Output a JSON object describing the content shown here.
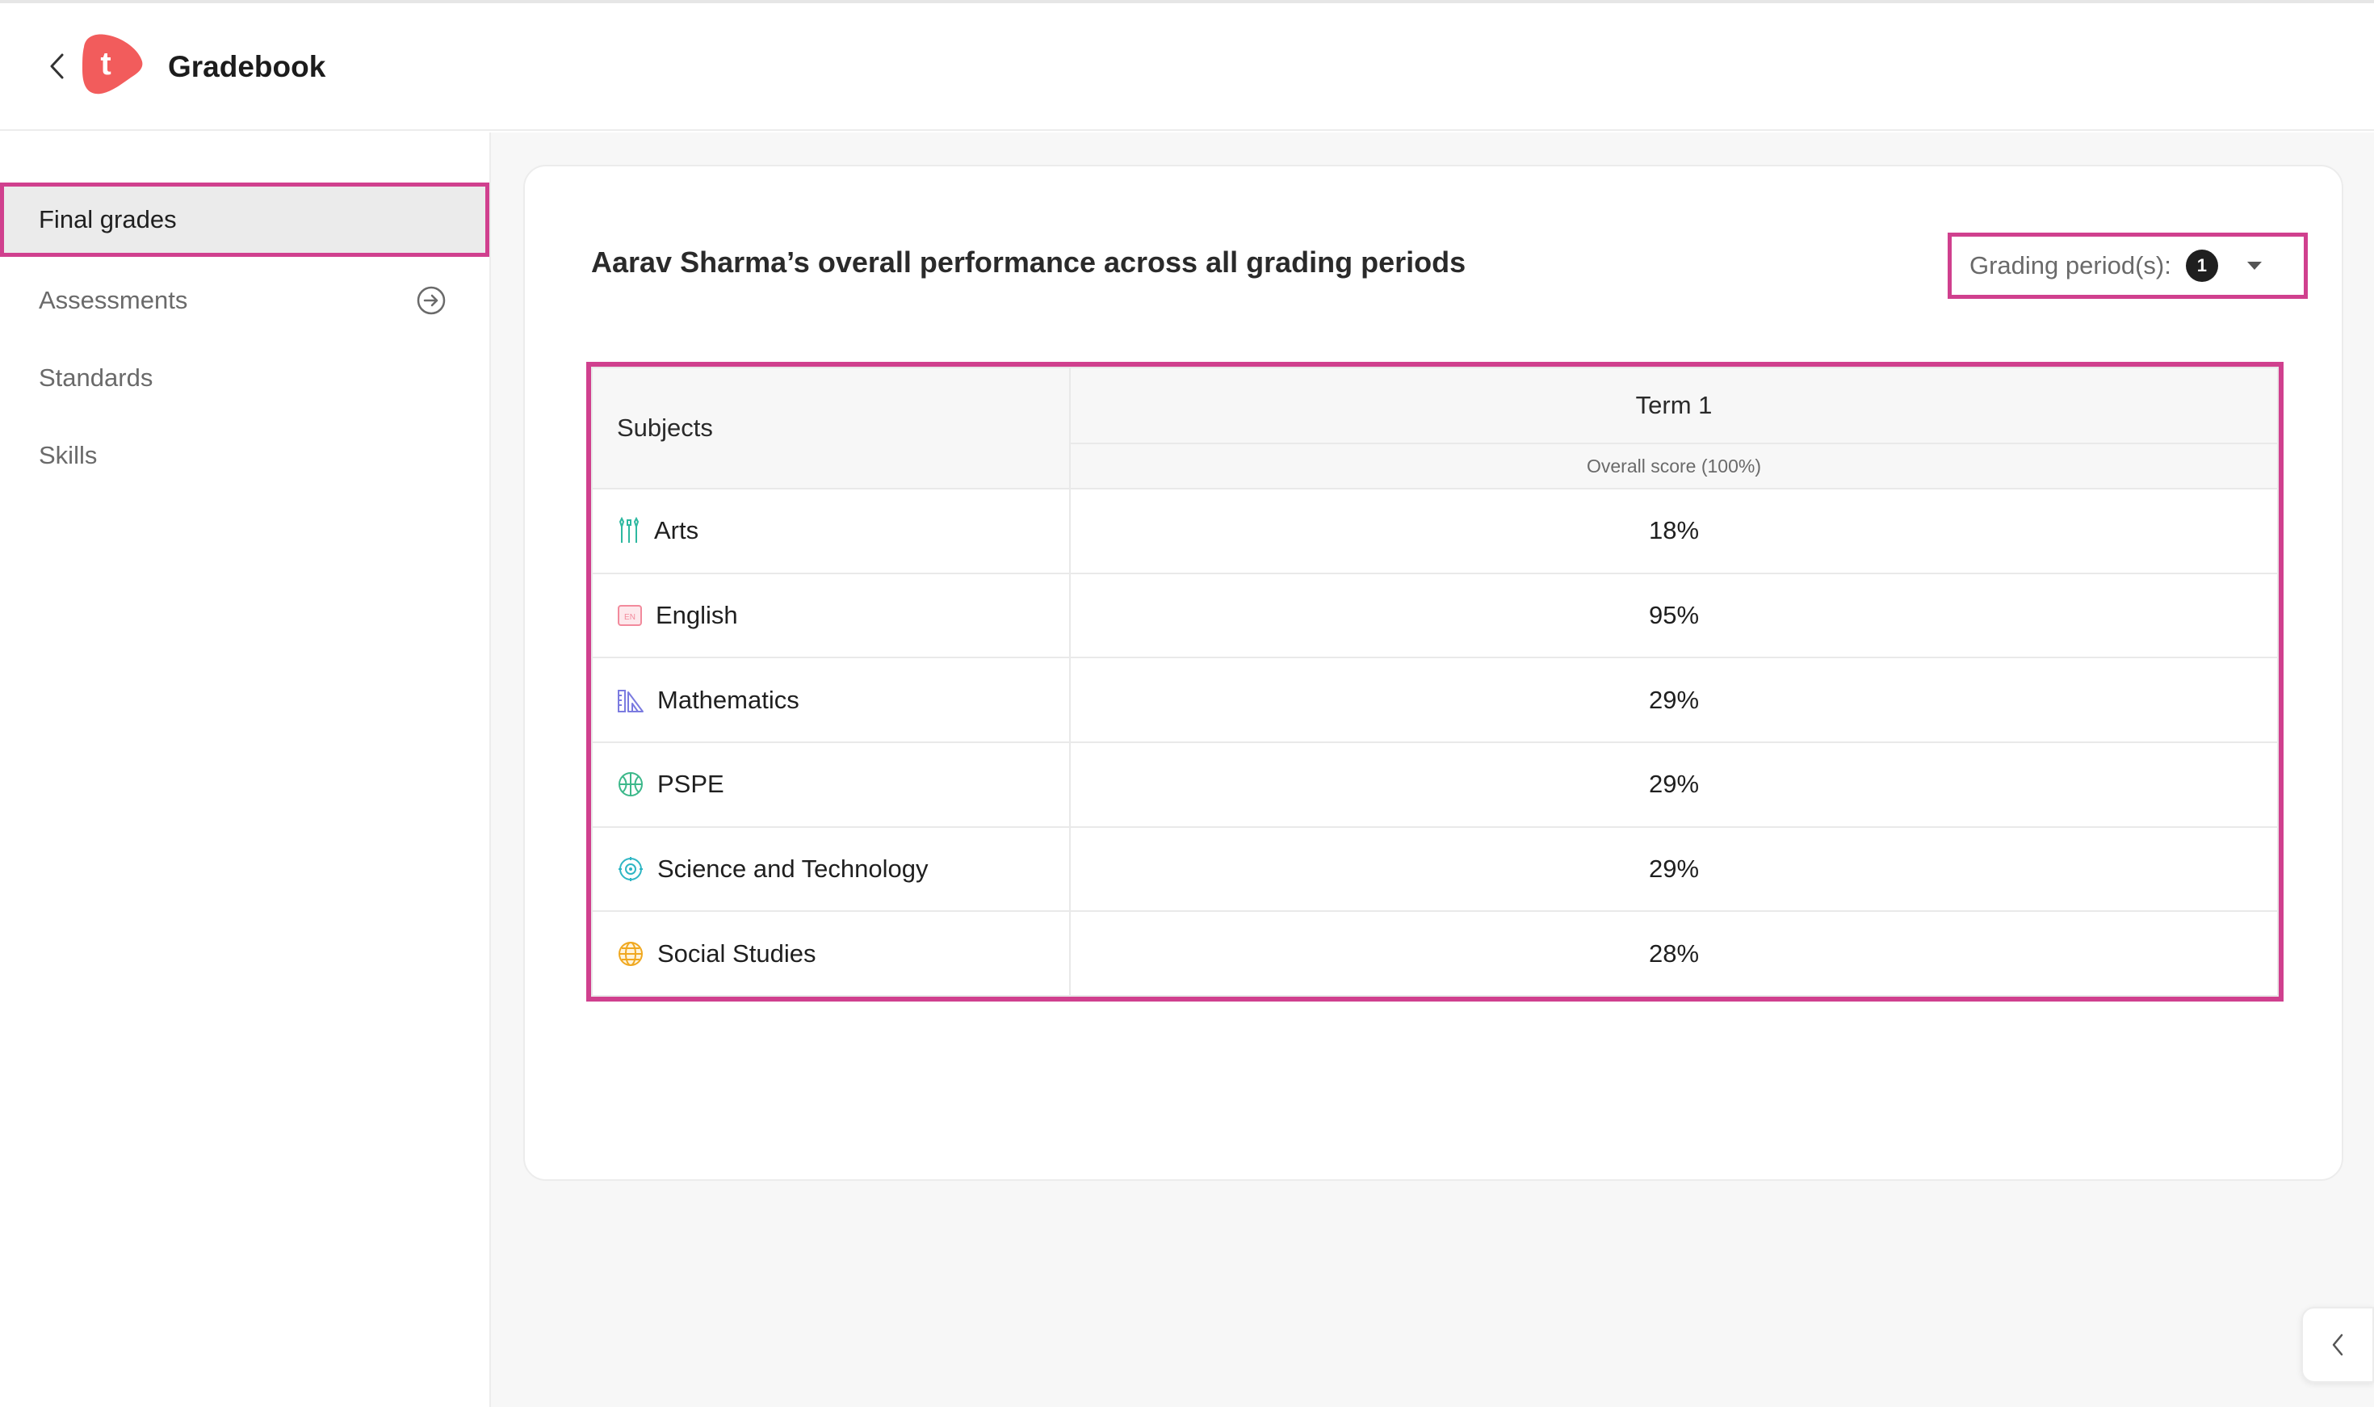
{
  "app": {
    "title": "Gradebook",
    "logo_letter": "t",
    "brand_color": "#f25c5c",
    "accent_color": "#d0408e"
  },
  "sidebar": {
    "items": [
      {
        "label": "Final grades",
        "active": true
      },
      {
        "label": "Assessments",
        "icon": "arrow-circle-right-icon"
      },
      {
        "label": "Standards"
      },
      {
        "label": "Skills"
      }
    ]
  },
  "main": {
    "title": "Aarav Sharma’s overall performance across all grading periods",
    "period_filter": {
      "label": "Grading period(s):",
      "count": "1"
    },
    "table": {
      "subjects_header": "Subjects",
      "term_header": "Term 1",
      "score_header": "Overall score (100%)",
      "rows": [
        {
          "subject": "Arts",
          "icon": "arts-icon",
          "score": "18%"
        },
        {
          "subject": "English",
          "icon": "english-icon",
          "score": "95%"
        },
        {
          "subject": "Mathematics",
          "icon": "mathematics-icon",
          "score": "29%"
        },
        {
          "subject": "PSPE",
          "icon": "pspe-icon",
          "score": "29%"
        },
        {
          "subject": "Science and Technology",
          "icon": "science-icon",
          "score": "29%"
        },
        {
          "subject": "Social Studies",
          "icon": "social-studies-icon",
          "score": "28%"
        }
      ]
    }
  }
}
